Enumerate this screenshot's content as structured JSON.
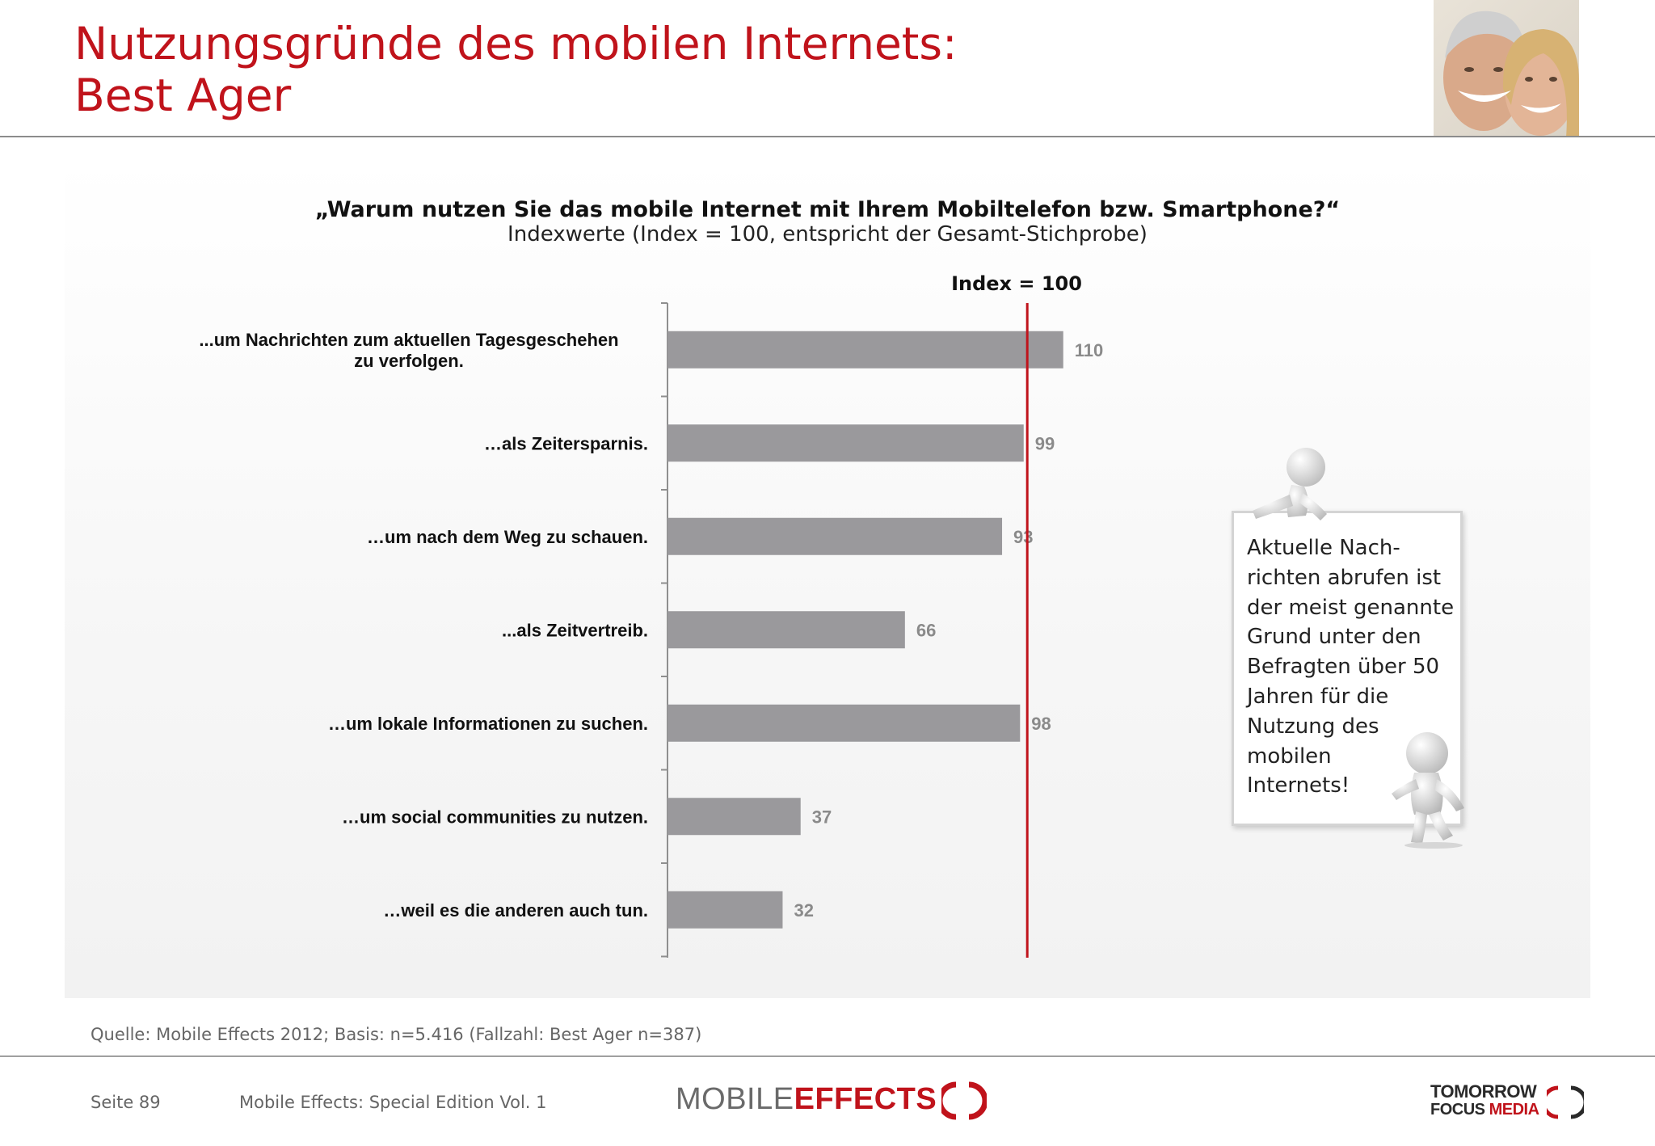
{
  "header": {
    "title_line1": "Nutzungsgründe des mobilen Internets:",
    "title_line2": "Best Ager"
  },
  "chart_data": {
    "type": "bar",
    "orientation": "horizontal",
    "title": "„Warum nutzen Sie das mobile Internet mit Ihrem Mobiltelefon bzw. Smartphone?“",
    "subtitle": "Indexwerte (Index = 100, entspricht der Gesamt-Stichprobe)",
    "categories": [
      "...um Nachrichten zum aktuellen Tagesgeschehen zu verfolgen.",
      "…als Zeitersparnis.",
      "…um nach dem Weg zu schauen.",
      "...als Zeitvertreib.",
      "…um lokale Informationen zu suchen.",
      "…um social communities zu nutzen.",
      "…weil es die anderen auch tun."
    ],
    "values": [
      110,
      99,
      93,
      66,
      98,
      37,
      32
    ],
    "xlim": [
      0,
      120
    ],
    "reference_line": {
      "value": 100,
      "label": "Index = 100",
      "color": "#c0131b"
    },
    "bar_color": "#9a999c",
    "value_label_color": "#8a8a8a",
    "grid": false
  },
  "callout": {
    "lines": [
      "Aktuelle Nach-",
      "richten abrufen ist",
      "der meist genannte",
      "Grund unter den",
      "Befragten über 50",
      "Jahren für die",
      "Nutzung des",
      "mobilen",
      "Internets!"
    ]
  },
  "footer": {
    "source": "Quelle: Mobile Effects 2012; Basis: n=5.416 (Fallzahl: Best Ager n=387)",
    "page": "Seite 89",
    "publication": "Mobile Effects: Special Edition Vol. 1",
    "logo_left_part1": "MOBILE",
    "logo_left_part2": "EFFECTS",
    "logo_right_line1": "TOMORROW",
    "logo_right_line2a": "FOCUS ",
    "logo_right_line2b": "MEDIA"
  },
  "colors": {
    "accent_red": "#c0131b",
    "bar_gray": "#9a999c"
  }
}
